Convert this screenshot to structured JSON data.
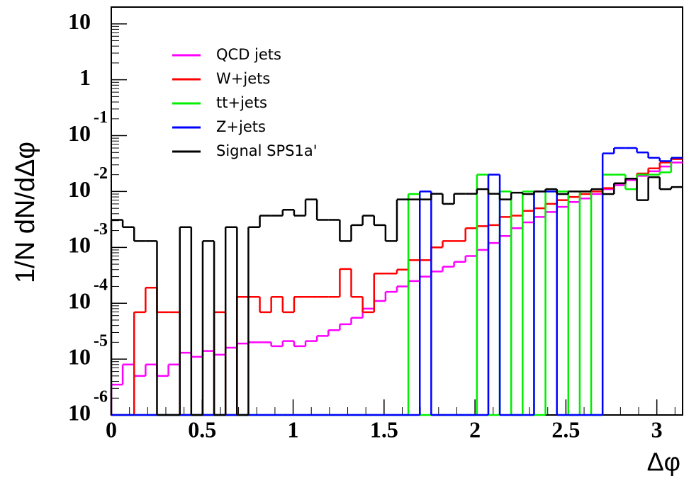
{
  "chart_data": {
    "type": "histogram",
    "x_label": "Δφ",
    "y_label": "1/N dN/dΔφ",
    "log_y": true,
    "xlim": [
      0,
      3.1416
    ],
    "ylim": [
      1e-06,
      20
    ],
    "xticks": [
      0,
      0.5,
      1,
      1.5,
      2,
      2.5,
      3
    ],
    "yticks": [
      {
        "value": 1e-06,
        "label": "10",
        "exponent": "-6"
      },
      {
        "value": 1e-05,
        "label": "10",
        "exponent": "-5"
      },
      {
        "value": 0.0001,
        "label": "10",
        "exponent": "-4"
      },
      {
        "value": 0.001,
        "label": "10",
        "exponent": "-3"
      },
      {
        "value": 0.01,
        "label": "10",
        "exponent": "-2"
      },
      {
        "value": 0.1,
        "label": "10",
        "exponent": "-1"
      },
      1,
      10
    ],
    "bins": [
      0,
      0.0628,
      0.1257,
      0.1885,
      0.2513,
      0.3142,
      0.377,
      0.4398,
      0.5027,
      0.5655,
      0.6283,
      0.6912,
      0.754,
      0.8168,
      0.8796,
      0.9425,
      1.0053,
      1.0681,
      1.131,
      1.1938,
      1.2566,
      1.3195,
      1.3823,
      1.4451,
      1.508,
      1.5708,
      1.6336,
      1.6965,
      1.7593,
      1.8221,
      1.885,
      1.9478,
      2.0106,
      2.0735,
      2.1363,
      2.1991,
      2.2619,
      2.3248,
      2.3876,
      2.4504,
      2.5133,
      2.5761,
      2.6389,
      2.7018,
      2.7646,
      2.8274,
      2.8903,
      2.9531,
      3.0159,
      3.0788,
      3.1416
    ],
    "series": [
      {
        "name": "QCD jets",
        "color": "#ff00ff",
        "values": [
          3.5e-06,
          8e-06,
          5e-06,
          8e-06,
          5e-06,
          8e-06,
          1.3e-05,
          1.1e-05,
          1.4e-05,
          1.2e-05,
          1.6e-05,
          1.9e-05,
          2e-05,
          2e-05,
          1.7e-05,
          2.1e-05,
          1.7e-05,
          2.1e-05,
          2.6e-05,
          3.3e-05,
          4.2e-05,
          5.5e-05,
          8e-05,
          0.00011,
          0.00016,
          0.0002,
          0.00025,
          0.0003,
          0.00037,
          0.00045,
          0.00055,
          0.0007,
          0.0009,
          0.0012,
          0.0016,
          0.0022,
          0.0028,
          0.0035,
          0.0043,
          0.0053,
          0.0065,
          0.0075,
          0.009,
          0.011,
          0.013,
          0.016,
          0.019,
          0.023,
          0.028,
          0.033
        ]
      },
      {
        "name": "W+jets",
        "color": "#ff0000",
        "values": [
          null,
          null,
          6.9e-05,
          0.00019,
          6.9e-05,
          6.9e-05,
          null,
          null,
          null,
          6.9e-05,
          null,
          0.00013,
          0.00013,
          6.9e-05,
          0.00013,
          6.9e-05,
          0.00013,
          0.00013,
          0.00013,
          0.00013,
          0.00041,
          0.00013,
          6.9e-05,
          0.00034,
          0.00034,
          0.0004,
          0.00059,
          0.00059,
          0.001,
          0.0013,
          0.0013,
          0.0022,
          0.0024,
          0.0025,
          0.0035,
          0.0037,
          0.0045,
          0.005,
          0.006,
          0.007,
          0.008,
          0.009,
          0.01,
          0.0115,
          0.014,
          0.017,
          0.021,
          0.026,
          0.033,
          0.038
        ]
      },
      {
        "name": "tt+jets",
        "color": "#00ee00",
        "values": [
          null,
          null,
          null,
          null,
          null,
          null,
          null,
          null,
          null,
          null,
          null,
          null,
          null,
          null,
          null,
          null,
          null,
          null,
          null,
          null,
          null,
          null,
          null,
          null,
          null,
          null,
          0.009,
          null,
          null,
          null,
          null,
          null,
          0.02,
          null,
          0.01,
          null,
          0.01,
          null,
          0.01,
          0.01,
          null,
          0.01,
          null,
          0.02,
          0.02,
          0.011,
          0.02,
          0.02,
          0.022,
          0.04
        ]
      },
      {
        "name": "Z+jets",
        "color": "#0000ff",
        "values": [
          null,
          null,
          null,
          null,
          null,
          null,
          null,
          null,
          null,
          null,
          null,
          null,
          null,
          null,
          null,
          null,
          null,
          null,
          null,
          null,
          null,
          null,
          null,
          null,
          null,
          null,
          null,
          0.01,
          null,
          null,
          null,
          null,
          null,
          0.02,
          null,
          null,
          null,
          0.01,
          0.01,
          null,
          null,
          null,
          null,
          0.048,
          0.06,
          0.06,
          0.05,
          0.04,
          0.035,
          0.04
        ]
      },
      {
        "name": "Signal SPS1a'",
        "color": "#000000",
        "values": [
          0.0031,
          0.0023,
          0.0013,
          0.0013,
          null,
          null,
          0.0023,
          null,
          0.0013,
          null,
          0.0023,
          null,
          0.0023,
          0.0037,
          0.0037,
          0.0047,
          0.0037,
          0.0072,
          0.0031,
          0.0031,
          0.0013,
          0.0025,
          0.0037,
          0.0025,
          0.0013,
          0.0072,
          0.0072,
          0.0072,
          0.0091,
          0.006,
          0.0091,
          0.0091,
          0.011,
          0.0091,
          0.0072,
          0.0095,
          0.009,
          0.01,
          0.011,
          0.009,
          0.01,
          0.01,
          0.011,
          0.009,
          0.014,
          0.017,
          0.007,
          0.018,
          0.011,
          0.012
        ]
      }
    ]
  }
}
